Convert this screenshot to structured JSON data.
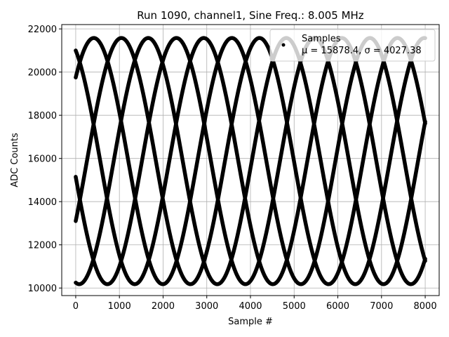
{
  "chart_data": {
    "type": "scatter",
    "title": "Run 1090, channel1, Sine Freq.: 8.005 MHz",
    "xlabel": "Sample #",
    "ylabel": "ADC Counts",
    "xlim": [
      -320,
      8320
    ],
    "ylim": [
      9650,
      22200
    ],
    "xticks": [
      0,
      1000,
      2000,
      3000,
      4000,
      5000,
      6000,
      7000,
      8000
    ],
    "yticks": [
      10000,
      12000,
      14000,
      16000,
      18000,
      20000,
      22000
    ],
    "grid": true,
    "legend": {
      "placement": "top-right",
      "entries": [
        "Samples"
      ],
      "stats": "μ = 15878.4, σ = 4027.38"
    },
    "series": [
      {
        "marker_color": "#000000",
        "x": [
          0,
          8000
        ],
        "mean": 15878.4,
        "amplitude": 5700,
        "period_samples": 3160,
        "phase_traces_at_x0": [
          21000,
          19750,
          15150,
          13100,
          10250
        ]
      }
    ]
  }
}
